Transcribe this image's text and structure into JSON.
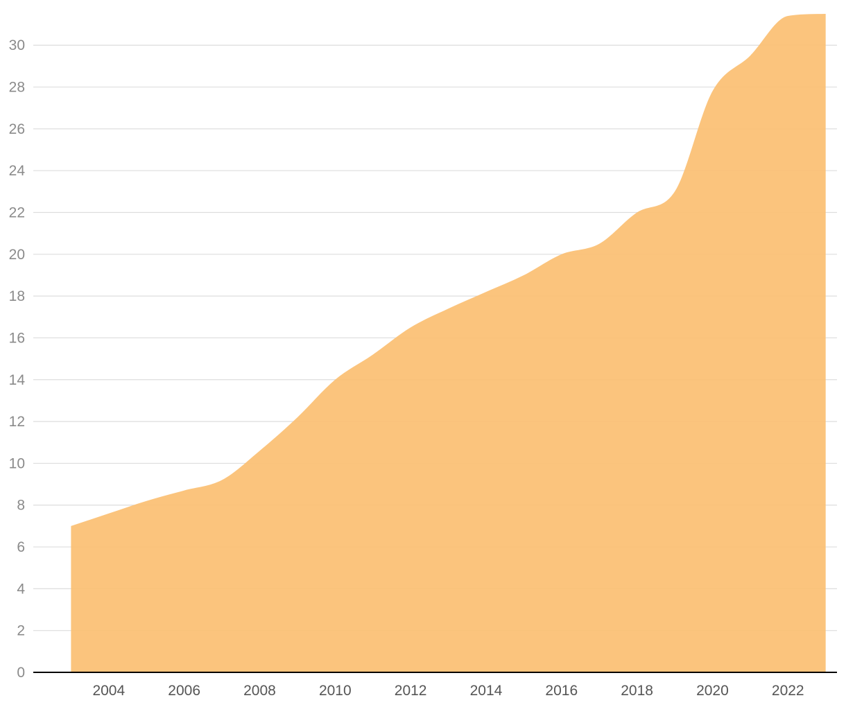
{
  "chart_data": {
    "type": "area",
    "title": "",
    "xlabel": "",
    "ylabel": "",
    "x": [
      2003,
      2004,
      2005,
      2006,
      2007,
      2008,
      2009,
      2010,
      2011,
      2012,
      2013,
      2014,
      2015,
      2016,
      2017,
      2018,
      2019,
      2020,
      2021,
      2022,
      2023
    ],
    "values": [
      7.0,
      7.6,
      8.2,
      8.7,
      9.2,
      10.6,
      12.2,
      14.0,
      15.2,
      16.5,
      17.4,
      18.2,
      19.0,
      20.0,
      20.5,
      22.0,
      23.0,
      27.8,
      29.5,
      31.4,
      31.5
    ],
    "xlim": [
      2002.0,
      2023.3
    ],
    "ylim": [
      0,
      31.5
    ],
    "x_ticks": [
      2004,
      2006,
      2008,
      2010,
      2012,
      2014,
      2016,
      2018,
      2020,
      2022
    ],
    "x_tick_labels": [
      "2004",
      "2006",
      "2008",
      "2010",
      "2012",
      "2014",
      "2016",
      "2018",
      "2020",
      "2022"
    ],
    "y_ticks": [
      0,
      2,
      4,
      6,
      8,
      10,
      12,
      14,
      16,
      18,
      20,
      22,
      24,
      26,
      28,
      30
    ],
    "y_tick_labels": [
      "0",
      "2",
      "4",
      "6",
      "8",
      "10",
      "12",
      "14",
      "16",
      "18",
      "20",
      "22",
      "24",
      "26",
      "28",
      "30"
    ],
    "grid": true,
    "legend": "none",
    "colors": {
      "area": "#fbbf72",
      "grid": "#dddddd",
      "axis": "#000000"
    }
  }
}
